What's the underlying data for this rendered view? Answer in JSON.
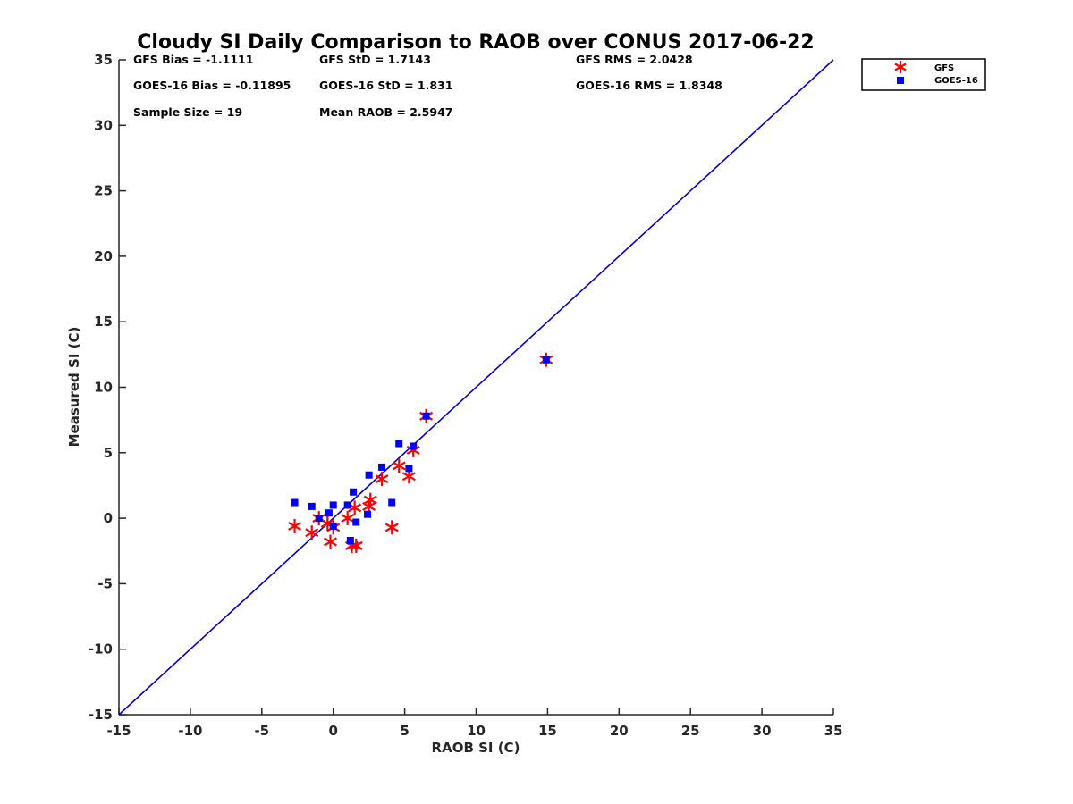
{
  "chart_data": {
    "type": "scatter",
    "title": "Cloudy SI Daily Comparison to RAOB over CONUS 2017-06-22",
    "xlabel": "RAOB SI (C)",
    "ylabel": "Measured SI (C)",
    "xlim": [
      -15,
      35
    ],
    "ylim": [
      -15,
      35
    ],
    "xticks": [
      "-15",
      "-10",
      "-5",
      "0",
      "5",
      "10",
      "15",
      "20",
      "25",
      "30",
      "35"
    ],
    "yticks": [
      "-15",
      "-10",
      "-5",
      "0",
      "5",
      "10",
      "15",
      "20",
      "25",
      "30",
      "35"
    ],
    "grid": false,
    "legend_position": "top-right outside",
    "reference_line": {
      "x": [
        -15,
        35
      ],
      "y": [
        -15,
        35
      ],
      "color": "#0000cc"
    },
    "series": [
      {
        "name": "GFS",
        "marker": "asterisk",
        "color": "#ff0000",
        "points": [
          [
            -2.7,
            -0.6
          ],
          [
            -1.5,
            -1.1
          ],
          [
            -1.0,
            0.0
          ],
          [
            -0.4,
            -0.4
          ],
          [
            -0.2,
            -1.8
          ],
          [
            0.0,
            -0.7
          ],
          [
            1.0,
            0.0
          ],
          [
            1.3,
            -2.1
          ],
          [
            1.5,
            0.8
          ],
          [
            1.6,
            -2.1
          ],
          [
            2.5,
            0.9
          ],
          [
            2.6,
            1.4
          ],
          [
            3.4,
            3.0
          ],
          [
            4.1,
            -0.7
          ],
          [
            4.6,
            4.0
          ],
          [
            5.3,
            3.2
          ],
          [
            5.6,
            5.2
          ],
          [
            6.5,
            7.8
          ],
          [
            14.9,
            12.1
          ]
        ]
      },
      {
        "name": "GOES-16",
        "marker": "square",
        "color": "#0000ff",
        "points": [
          [
            -2.7,
            1.2
          ],
          [
            -1.5,
            0.9
          ],
          [
            -1.0,
            0.0
          ],
          [
            -0.3,
            0.4
          ],
          [
            0.0,
            -0.6
          ],
          [
            0.0,
            1.0
          ],
          [
            1.0,
            1.0
          ],
          [
            1.2,
            -1.7
          ],
          [
            1.4,
            2.0
          ],
          [
            1.6,
            -0.3
          ],
          [
            2.4,
            0.3
          ],
          [
            2.5,
            3.3
          ],
          [
            3.4,
            3.9
          ],
          [
            4.1,
            1.2
          ],
          [
            4.6,
            5.7
          ],
          [
            5.3,
            3.8
          ],
          [
            5.6,
            5.5
          ],
          [
            6.5,
            7.8
          ],
          [
            14.9,
            12.1
          ]
        ]
      }
    ],
    "stats": [
      [
        "GFS Bias = -1.1111",
        "GFS StD = 1.7143",
        "GFS RMS = 2.0428"
      ],
      [
        "GOES-16 Bias = -0.11895",
        "GOES-16 StD = 1.831",
        "GOES-16 RMS = 1.8348"
      ],
      [
        "Sample Size = 19",
        "Mean RAOB = 2.5947",
        ""
      ]
    ]
  }
}
